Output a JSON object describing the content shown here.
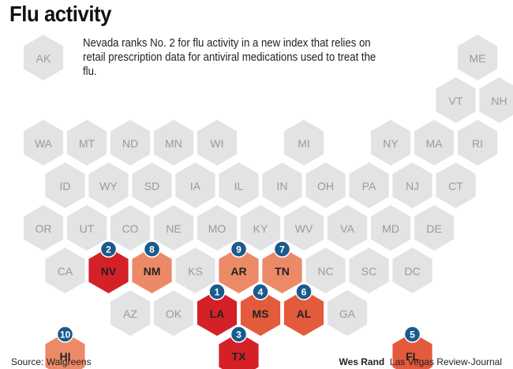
{
  "title": "Flu activity",
  "intro": "Nevada ranks No. 2 for flu activity in a new index that relies on retail prescription data for antiviral medications used to treat the flu.",
  "source": "Source: Walgreens",
  "credit": {
    "name": "Wes Rand",
    "outlet": "Las Vegas Review-Journal"
  },
  "colors": {
    "inactive": "#e2e3e4",
    "inactive_text": "#9a9a9a",
    "ranked_text": "#222222",
    "badge": "#1a5a8c",
    "rank_dark": "#d42027",
    "rank_medium": "#e45a3c",
    "rank_light": "#ec8a68"
  },
  "states": [
    {
      "abbr": "AK",
      "col": 0,
      "row": 0
    },
    {
      "abbr": "ME",
      "col": 10,
      "row": 0
    },
    {
      "abbr": "VT",
      "col": 9,
      "row": 1
    },
    {
      "abbr": "NH",
      "col": 10,
      "row": 1
    },
    {
      "abbr": "WA",
      "col": 0,
      "row": 2
    },
    {
      "abbr": "MT",
      "col": 1,
      "row": 2
    },
    {
      "abbr": "ND",
      "col": 2,
      "row": 2
    },
    {
      "abbr": "MN",
      "col": 3,
      "row": 2
    },
    {
      "abbr": "WI",
      "col": 4,
      "row": 2
    },
    {
      "abbr": "MI",
      "col": 6,
      "row": 2
    },
    {
      "abbr": "NY",
      "col": 8,
      "row": 2
    },
    {
      "abbr": "MA",
      "col": 9,
      "row": 2
    },
    {
      "abbr": "RI",
      "col": 10,
      "row": 2
    },
    {
      "abbr": "ID",
      "col": 0,
      "row": 3
    },
    {
      "abbr": "WY",
      "col": 1,
      "row": 3
    },
    {
      "abbr": "SD",
      "col": 2,
      "row": 3
    },
    {
      "abbr": "IA",
      "col": 3,
      "row": 3
    },
    {
      "abbr": "IL",
      "col": 4,
      "row": 3
    },
    {
      "abbr": "IN",
      "col": 5,
      "row": 3
    },
    {
      "abbr": "OH",
      "col": 6,
      "row": 3
    },
    {
      "abbr": "PA",
      "col": 7,
      "row": 3
    },
    {
      "abbr": "NJ",
      "col": 8,
      "row": 3
    },
    {
      "abbr": "CT",
      "col": 9,
      "row": 3
    },
    {
      "abbr": "OR",
      "col": 0,
      "row": 4
    },
    {
      "abbr": "UT",
      "col": 1,
      "row": 4
    },
    {
      "abbr": "CO",
      "col": 2,
      "row": 4
    },
    {
      "abbr": "NE",
      "col": 3,
      "row": 4
    },
    {
      "abbr": "MO",
      "col": 4,
      "row": 4
    },
    {
      "abbr": "KY",
      "col": 5,
      "row": 4
    },
    {
      "abbr": "WV",
      "col": 6,
      "row": 4
    },
    {
      "abbr": "VA",
      "col": 7,
      "row": 4
    },
    {
      "abbr": "MD",
      "col": 8,
      "row": 4
    },
    {
      "abbr": "DE",
      "col": 9,
      "row": 4
    },
    {
      "abbr": "CA",
      "col": 0,
      "row": 5
    },
    {
      "abbr": "NV",
      "col": 1,
      "row": 5,
      "rank": "2",
      "shade": "dark"
    },
    {
      "abbr": "NM",
      "col": 2,
      "row": 5,
      "rank": "8",
      "shade": "light"
    },
    {
      "abbr": "KS",
      "col": 3,
      "row": 5
    },
    {
      "abbr": "AR",
      "col": 4,
      "row": 5,
      "rank": "9",
      "shade": "light"
    },
    {
      "abbr": "TN",
      "col": 5,
      "row": 5,
      "rank": "7",
      "shade": "light"
    },
    {
      "abbr": "NC",
      "col": 6,
      "row": 5
    },
    {
      "abbr": "SC",
      "col": 7,
      "row": 5
    },
    {
      "abbr": "DC",
      "col": 8,
      "row": 5
    },
    {
      "abbr": "AZ",
      "col": 2,
      "row": 6
    },
    {
      "abbr": "OK",
      "col": 3,
      "row": 6
    },
    {
      "abbr": "LA",
      "col": 4,
      "row": 6,
      "rank": "1",
      "shade": "dark"
    },
    {
      "abbr": "MS",
      "col": 5,
      "row": 6,
      "rank": "4",
      "shade": "medium"
    },
    {
      "abbr": "AL",
      "col": 6,
      "row": 6,
      "rank": "6",
      "shade": "medium"
    },
    {
      "abbr": "GA",
      "col": 7,
      "row": 6
    },
    {
      "abbr": "HI",
      "col": 0,
      "row": 7,
      "rank": "10",
      "shade": "light"
    },
    {
      "abbr": "TX",
      "col": 4,
      "row": 7,
      "rank": "3",
      "shade": "dark"
    },
    {
      "abbr": "FL",
      "col": 8,
      "row": 7,
      "rank": "5",
      "shade": "medium"
    }
  ]
}
